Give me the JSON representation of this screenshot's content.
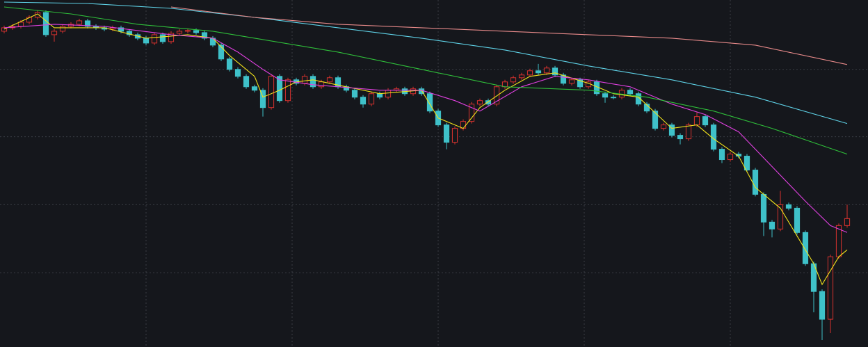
{
  "chart_data": {
    "type": "candlestick",
    "xlim": [
      -0.5,
      103.5
    ],
    "ylim": [
      0,
      500
    ],
    "ygrid": [
      400,
      303,
      205,
      107
    ],
    "xgrid": [
      17,
      34.5,
      52,
      69.5,
      87
    ],
    "grid_color": "#3a3d44",
    "up_color": "#d7322e",
    "down_color": "#3fc1c9",
    "open": [
      455,
      460,
      462,
      468,
      475,
      482,
      450,
      455,
      462,
      465,
      470,
      462,
      460,
      458,
      460,
      455,
      450,
      445,
      438,
      450,
      440,
      452,
      455,
      456,
      453,
      445,
      435,
      415,
      400,
      390,
      375,
      370,
      345,
      390,
      355,
      385,
      380,
      390,
      375,
      382,
      388,
      375,
      370,
      360,
      350,
      365,
      360,
      370,
      372,
      365,
      372,
      365,
      340,
      320,
      295,
      315,
      325,
      350,
      355,
      350,
      375,
      382,
      388,
      392,
      398,
      395,
      402,
      392,
      380,
      385,
      375,
      382,
      365,
      360,
      360,
      370,
      365,
      350,
      340,
      315,
      320,
      305,
      300,
      320,
      332,
      320,
      285,
      270,
      278,
      275,
      255,
      220,
      180,
      170,
      205,
      200,
      165,
      120,
      80,
      40,
      130,
      175
    ],
    "high": [
      463,
      465,
      471,
      478,
      485,
      485,
      458,
      465,
      468,
      473,
      473,
      465,
      463,
      463,
      463,
      458,
      453,
      448,
      453,
      453,
      455,
      458,
      459,
      459,
      456,
      448,
      438,
      418,
      403,
      393,
      378,
      373,
      393,
      393,
      388,
      388,
      393,
      393,
      385,
      391,
      391,
      378,
      373,
      363,
      368,
      368,
      373,
      375,
      375,
      375,
      375,
      368,
      343,
      323,
      318,
      328,
      353,
      358,
      358,
      378,
      385,
      391,
      395,
      401,
      408,
      405,
      405,
      395,
      388,
      388,
      385,
      385,
      368,
      363,
      373,
      373,
      368,
      353,
      343,
      323,
      323,
      308,
      323,
      338,
      335,
      323,
      288,
      281,
      281,
      278,
      258,
      223,
      183,
      225,
      208,
      203,
      168,
      123,
      83,
      133,
      178,
      205
    ],
    "low": [
      452,
      457,
      459,
      465,
      472,
      447,
      440,
      452,
      459,
      462,
      459,
      457,
      455,
      455,
      452,
      447,
      442,
      435,
      435,
      437,
      437,
      449,
      452,
      450,
      442,
      432,
      412,
      397,
      387,
      372,
      367,
      332,
      342,
      352,
      352,
      377,
      377,
      372,
      372,
      379,
      372,
      367,
      357,
      345,
      347,
      357,
      357,
      367,
      362,
      362,
      362,
      337,
      317,
      285,
      292,
      312,
      322,
      347,
      347,
      347,
      372,
      379,
      385,
      389,
      392,
      392,
      389,
      377,
      377,
      372,
      372,
      362,
      352,
      357,
      357,
      362,
      347,
      337,
      312,
      312,
      302,
      292,
      297,
      317,
      317,
      282,
      265,
      267,
      272,
      252,
      217,
      160,
      158,
      167,
      197,
      162,
      117,
      50,
      10,
      20,
      127,
      172
    ],
    "close": [
      460,
      462,
      468,
      475,
      482,
      450,
      455,
      462,
      465,
      470,
      462,
      460,
      458,
      460,
      455,
      450,
      445,
      438,
      450,
      440,
      452,
      455,
      456,
      453,
      445,
      435,
      415,
      400,
      390,
      375,
      370,
      345,
      390,
      355,
      385,
      380,
      390,
      375,
      382,
      388,
      375,
      370,
      360,
      350,
      365,
      360,
      370,
      372,
      365,
      372,
      365,
      340,
      320,
      295,
      315,
      325,
      350,
      355,
      350,
      375,
      382,
      388,
      392,
      398,
      395,
      402,
      392,
      380,
      385,
      375,
      382,
      365,
      360,
      360,
      370,
      365,
      350,
      340,
      315,
      320,
      305,
      300,
      320,
      332,
      320,
      285,
      270,
      278,
      275,
      255,
      220,
      180,
      170,
      205,
      200,
      165,
      120,
      80,
      40,
      130,
      175,
      185
    ],
    "series": [
      {
        "color": "#f2e21b",
        "x": [
          0,
          4,
          6,
          12,
          17,
          22,
          25,
          27,
          30,
          31,
          33,
          35,
          37,
          41,
          45,
          50,
          52,
          55,
          57,
          60,
          63,
          66,
          70,
          73,
          76,
          80,
          83,
          85,
          88,
          90,
          93,
          95,
          97,
          98,
          100,
          101
        ],
        "values": [
          458,
          480,
          460,
          460,
          445,
          450,
          445,
          420,
          390,
          360,
          370,
          382,
          385,
          375,
          365,
          370,
          330,
          315,
          345,
          370,
          390,
          395,
          380,
          365,
          360,
          315,
          320,
          300,
          275,
          230,
          200,
          160,
          120,
          90,
          130,
          140
        ]
      },
      {
        "color": "#e040e0",
        "x": [
          0,
          6,
          12,
          20,
          25,
          28,
          31,
          33,
          37,
          45,
          50,
          54,
          57,
          62,
          66,
          70,
          75,
          80,
          84,
          88,
          92,
          96,
          99,
          101
        ],
        "values": [
          460,
          465,
          462,
          450,
          445,
          425,
          400,
          385,
          378,
          370,
          370,
          355,
          340,
          375,
          390,
          385,
          375,
          350,
          335,
          310,
          260,
          210,
          175,
          165
        ]
      },
      {
        "color": "#2fbf3a",
        "x": [
          0,
          8,
          16,
          25,
          30,
          40,
          50,
          60,
          70,
          77,
          85,
          92,
          101
        ],
        "values": [
          490,
          480,
          465,
          455,
          445,
          425,
          400,
          375,
          370,
          360,
          340,
          315,
          278
        ]
      },
      {
        "color": "#5fd3e8",
        "x": [
          0,
          10,
          20,
          30,
          40,
          50,
          60,
          70,
          80,
          90,
          101
        ],
        "values": [
          497,
          495,
          488,
          475,
          460,
          445,
          428,
          405,
          385,
          360,
          322
        ]
      },
      {
        "color": "#e88a8a",
        "x": [
          20,
          30,
          40,
          50,
          60,
          70,
          80,
          90,
          101
        ],
        "values": [
          490,
          475,
          465,
          460,
          455,
          450,
          445,
          435,
          407
        ]
      }
    ]
  }
}
